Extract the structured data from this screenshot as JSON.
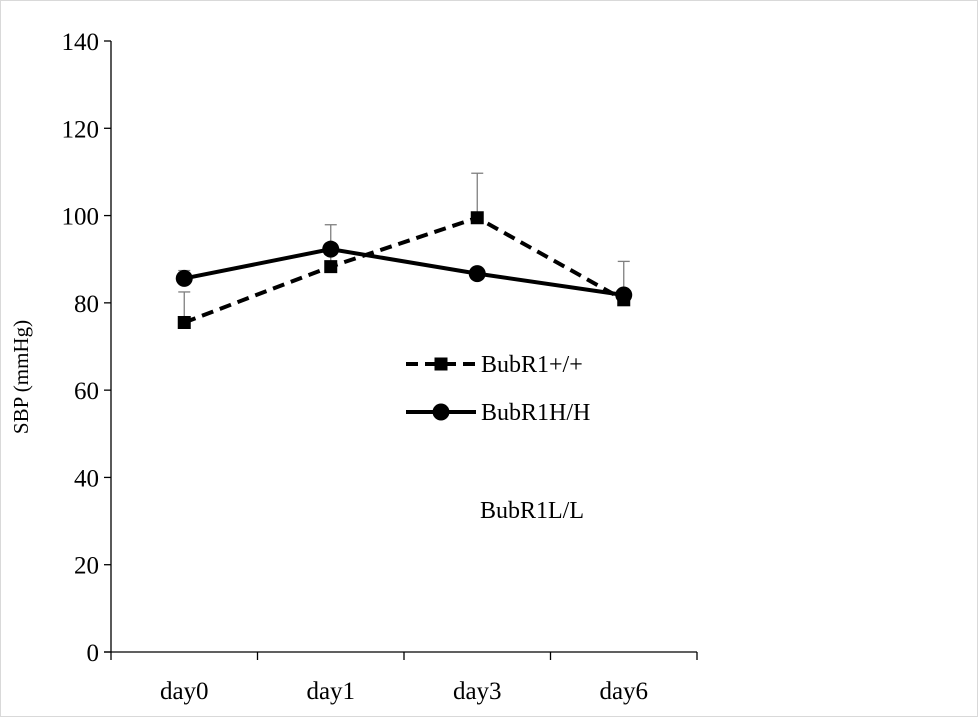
{
  "chart_data": {
    "type": "line",
    "title": "",
    "xlabel": "",
    "ylabel": "SBP (mmHg)",
    "categories": [
      "day0",
      "day1",
      "day3",
      "day6"
    ],
    "ylim": [
      0,
      140
    ],
    "yticks": [
      0,
      20,
      40,
      60,
      80,
      100,
      120,
      140
    ],
    "grid": false,
    "legend_position": "center-right",
    "series": [
      {
        "name": "BubR1+/+",
        "values": [
          75.5,
          88.3,
          99.5,
          80.7
        ],
        "error": [
          7.0,
          9.6,
          10.2,
          8.8
        ],
        "marker": "square",
        "line_style": "dashed",
        "color": "#000000"
      },
      {
        "name": "BubR1H/H",
        "values": [
          85.6,
          92.3,
          86.7,
          81.8
        ],
        "error": [
          1.8,
          0,
          0,
          0
        ],
        "marker": "circle",
        "line_style": "solid",
        "color": "#000000"
      }
    ],
    "annotations": [
      "BubR1L/L"
    ]
  }
}
